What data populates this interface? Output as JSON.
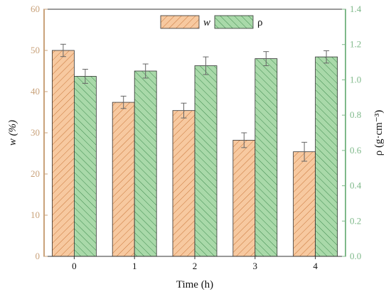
{
  "colors": {
    "w_fill": "#f7c9a0",
    "w_hatch": "#c8763a",
    "w_axis": "#c9a27a",
    "rho_fill": "#a9d9a9",
    "rho_hatch": "#3d8a4d",
    "rho_axis": "#7fb98a",
    "frame": "#333333",
    "errorbar": "#666666"
  },
  "chart_data": {
    "type": "bar",
    "xlabel": "Time (h)",
    "ylabel_left": "w (%)",
    "ylabel_right": "ρ (g·cm⁻³)",
    "categories": [
      "0",
      "1",
      "2",
      "3",
      "4"
    ],
    "ylim_left": [
      0,
      60
    ],
    "ylim_right": [
      0,
      1.4
    ],
    "yticks_left": [
      "0",
      "10",
      "20",
      "30",
      "40",
      "50",
      "60"
    ],
    "yticks_right": [
      "0.0",
      "0.2",
      "0.4",
      "0.6",
      "0.8",
      "1.0",
      "1.2",
      "1.4"
    ],
    "legend_position": "top-center",
    "grid": false,
    "series": [
      {
        "name": "w",
        "axis": "left",
        "values": [
          50.0,
          37.4,
          35.4,
          28.2,
          25.4
        ],
        "errors": [
          1.5,
          1.5,
          1.8,
          1.8,
          2.3
        ]
      },
      {
        "name": "ρ",
        "axis": "right",
        "values": [
          1.02,
          1.05,
          1.08,
          1.12,
          1.13
        ],
        "errors": [
          0.04,
          0.04,
          0.05,
          0.04,
          0.035
        ]
      }
    ]
  }
}
